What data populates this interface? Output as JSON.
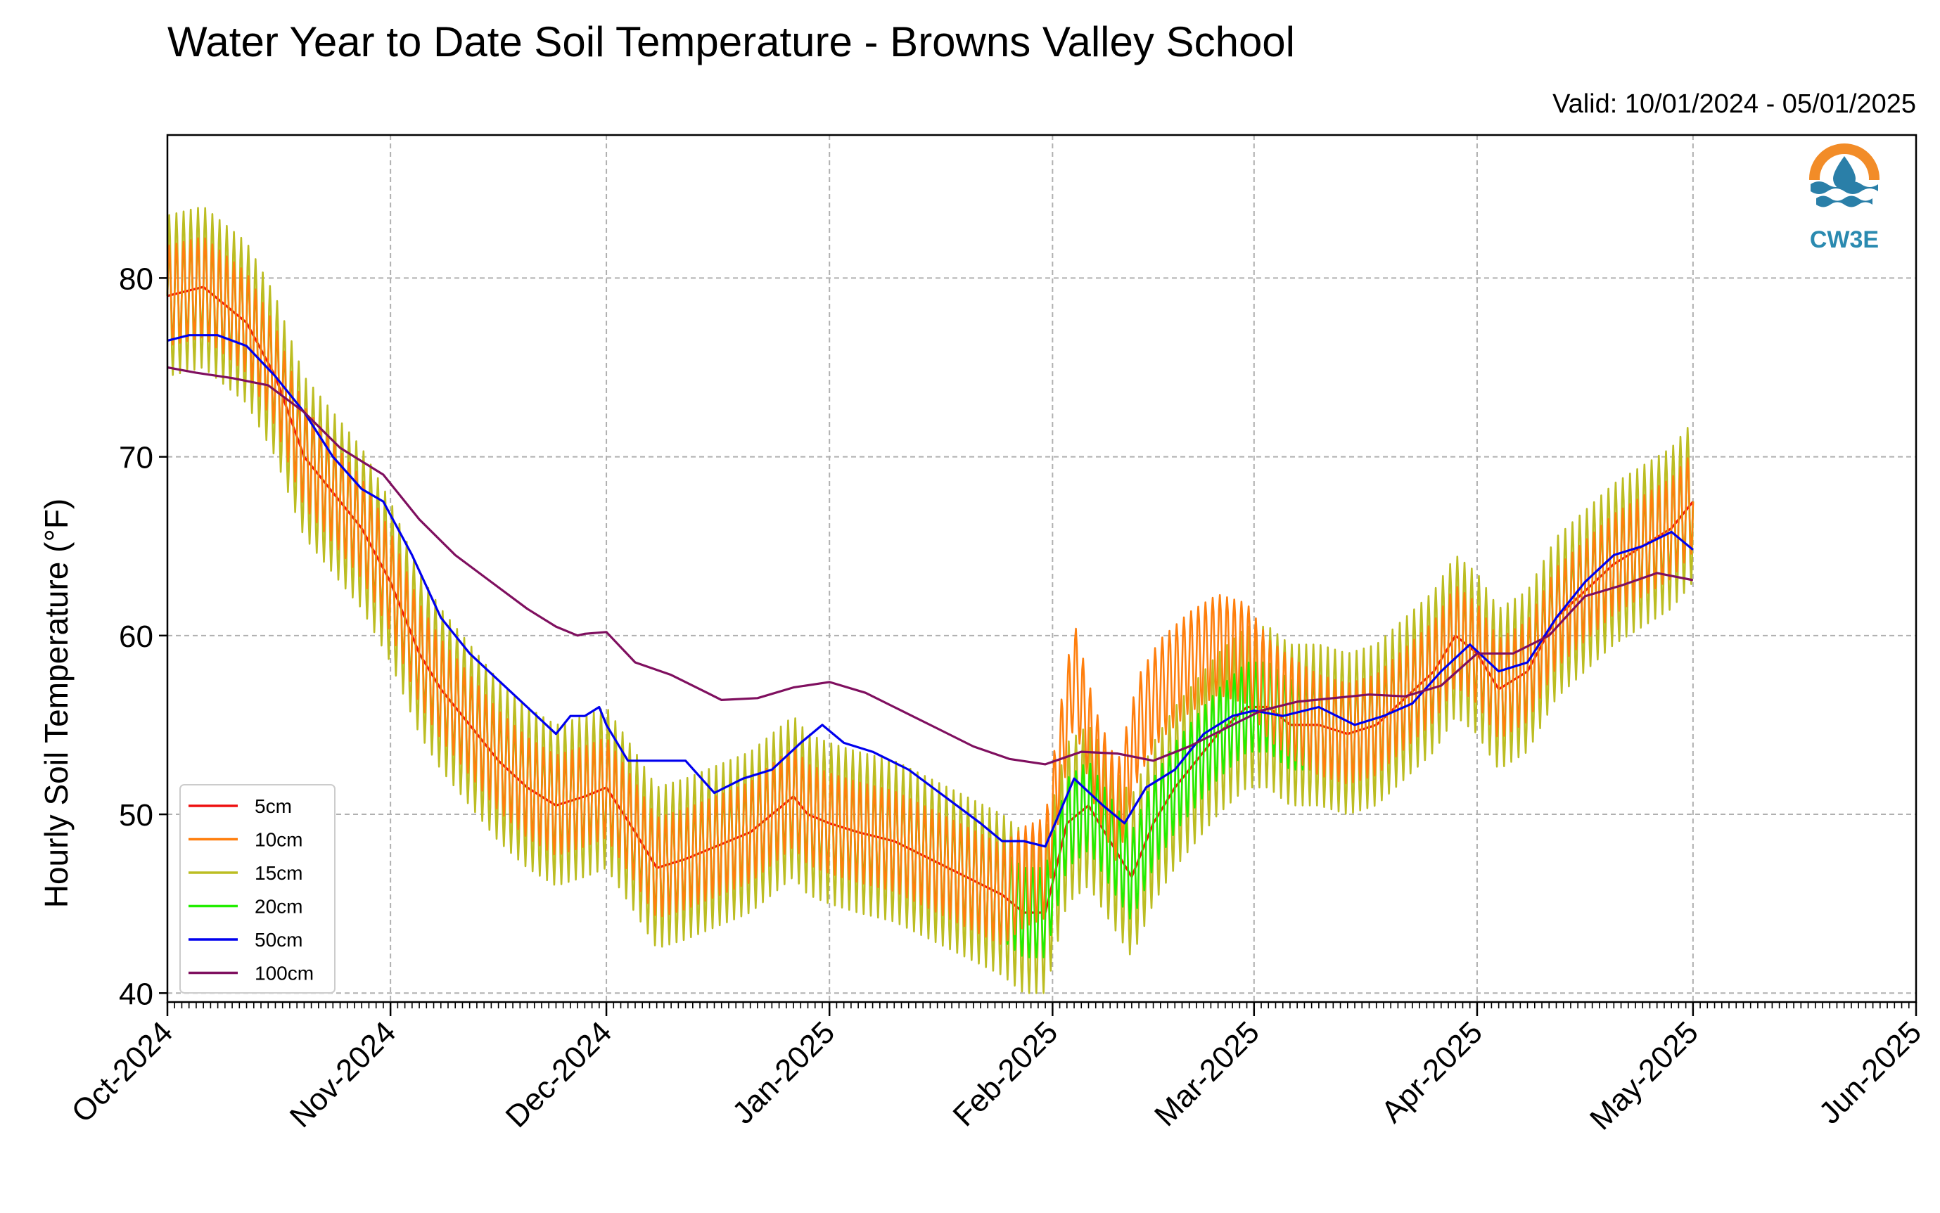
{
  "chart_data": {
    "type": "line",
    "title": "Water Year to Date Soil Temperature - Browns Valley School",
    "subtitle": "Valid: 10/01/2024 - 05/01/2025",
    "ylabel": "Hourly Soil Temperature (°F)",
    "xlabel": "",
    "ylim": [
      39.5,
      88
    ],
    "xlim": [
      "2024-10-01",
      "2025-06-01"
    ],
    "yticks": [
      40,
      50,
      60,
      70,
      80
    ],
    "x_ticks": [
      "2024-10-01",
      "2024-11-01",
      "2024-12-01",
      "2025-01-01",
      "2025-02-01",
      "2025-03-01",
      "2025-04-01",
      "2025-05-01",
      "2025-06-01"
    ],
    "xtick_labels": [
      "Oct-2024",
      "Nov-2024",
      "Dec-2024",
      "Jan-2025",
      "Feb-2025",
      "Mar-2025",
      "Apr-2025",
      "May-2025",
      "Jun-2025"
    ],
    "grid": true,
    "legend_position": "lower-left",
    "logo_text": "CW3E",
    "series": [
      {
        "name": "5cm",
        "color": "#ee1111",
        "daily_amplitude": 0,
        "x": [
          "2024-10-01",
          "2024-10-06",
          "2024-10-12",
          "2024-10-16",
          "2024-10-20",
          "2024-10-24",
          "2024-10-28",
          "2024-11-01",
          "2024-11-05",
          "2024-11-08",
          "2024-11-12",
          "2024-11-16",
          "2024-11-20",
          "2024-11-24",
          "2024-11-28",
          "2024-12-01",
          "2024-12-05",
          "2024-12-08",
          "2024-12-12",
          "2024-12-15",
          "2024-12-18",
          "2024-12-21",
          "2024-12-24",
          "2024-12-27",
          "2024-12-29",
          "2025-01-01",
          "2025-01-05",
          "2025-01-10",
          "2025-01-15",
          "2025-01-20",
          "2025-01-25",
          "2025-01-28",
          "2025-01-31",
          "2025-02-03",
          "2025-02-06",
          "2025-02-09",
          "2025-02-12",
          "2025-02-15",
          "2025-02-18",
          "2025-02-21",
          "2025-02-24",
          "2025-02-28",
          "2025-03-03",
          "2025-03-06",
          "2025-03-10",
          "2025-03-14",
          "2025-03-18",
          "2025-03-22",
          "2025-03-26",
          "2025-03-29",
          "2025-04-01",
          "2025-04-04",
          "2025-04-08",
          "2025-04-12",
          "2025-04-16",
          "2025-04-20",
          "2025-04-24",
          "2025-04-28",
          "2025-05-01"
        ],
        "y": [
          79,
          79.5,
          77.5,
          74.5,
          70,
          68,
          66,
          63,
          59,
          57,
          55,
          53,
          51.5,
          50.5,
          51,
          51.5,
          49,
          47,
          47.5,
          48,
          48.5,
          49,
          50,
          51,
          50,
          49.5,
          49,
          48.5,
          47.5,
          46.5,
          45.5,
          44.5,
          44.5,
          49.5,
          50.5,
          48.5,
          46.5,
          49.5,
          51.5,
          53,
          54.5,
          56,
          56,
          55,
          55,
          54.5,
          55,
          56.5,
          58,
          60,
          59,
          57,
          58,
          61,
          62.5,
          64,
          65,
          66,
          67.5
        ]
      },
      {
        "name": "10cm",
        "color": "#ff7f0e",
        "daily_amplitude": 2.8,
        "x": [
          "2024-10-01",
          "2024-10-06",
          "2024-10-12",
          "2024-10-16",
          "2024-10-20",
          "2024-10-24",
          "2024-10-28",
          "2024-11-01",
          "2024-11-05",
          "2024-11-08",
          "2024-11-12",
          "2024-11-16",
          "2024-11-20",
          "2024-11-24",
          "2024-11-28",
          "2024-12-01",
          "2024-12-05",
          "2024-12-08",
          "2024-12-12",
          "2024-12-15",
          "2024-12-18",
          "2024-12-21",
          "2024-12-24",
          "2024-12-27",
          "2024-12-29",
          "2025-01-01",
          "2025-01-05",
          "2025-01-10",
          "2025-01-15",
          "2025-01-20",
          "2025-01-25",
          "2025-01-28",
          "2025-01-31",
          "2025-02-02",
          "2025-02-04",
          "2025-02-07",
          "2025-02-10",
          "2025-02-13",
          "2025-02-16",
          "2025-02-20",
          "2025-02-24",
          "2025-02-28",
          "2025-03-03",
          "2025-03-06",
          "2025-03-10",
          "2025-03-14",
          "2025-03-18",
          "2025-03-22",
          "2025-03-26",
          "2025-03-29",
          "2025-04-01",
          "2025-04-04",
          "2025-04-08",
          "2025-04-12",
          "2025-04-16",
          "2025-04-20",
          "2025-04-24",
          "2025-04-28",
          "2025-05-01"
        ],
        "y": [
          79,
          79.5,
          77.5,
          74.5,
          70,
          68,
          66,
          63,
          59,
          57,
          55,
          53,
          51.5,
          50.5,
          51,
          51.5,
          49,
          47,
          47.5,
          48,
          48.5,
          49,
          50,
          51,
          50,
          49.5,
          49,
          48.5,
          47.5,
          46.5,
          45.5,
          46.5,
          47,
          53,
          58,
          53,
          50,
          55,
          57,
          58.5,
          59.5,
          59,
          57,
          56,
          55,
          54.5,
          55,
          56.5,
          58,
          60,
          59,
          57,
          58,
          61,
          62.5,
          64,
          65,
          66,
          67.5
        ]
      },
      {
        "name": "15cm",
        "color": "#bcbd22",
        "daily_amplitude": 4.5,
        "x": [
          "2024-10-01",
          "2024-10-06",
          "2024-10-12",
          "2024-10-16",
          "2024-10-20",
          "2024-10-24",
          "2024-10-28",
          "2024-11-01",
          "2024-11-05",
          "2024-11-08",
          "2024-11-12",
          "2024-11-16",
          "2024-11-20",
          "2024-11-24",
          "2024-11-28",
          "2024-12-01",
          "2024-12-05",
          "2024-12-08",
          "2024-12-12",
          "2024-12-15",
          "2024-12-18",
          "2024-12-21",
          "2024-12-24",
          "2024-12-27",
          "2024-12-29",
          "2025-01-01",
          "2025-01-05",
          "2025-01-10",
          "2025-01-15",
          "2025-01-20",
          "2025-01-25",
          "2025-01-28",
          "2025-01-31",
          "2025-02-03",
          "2025-02-06",
          "2025-02-09",
          "2025-02-12",
          "2025-02-15",
          "2025-02-18",
          "2025-02-21",
          "2025-02-24",
          "2025-02-28",
          "2025-03-03",
          "2025-03-06",
          "2025-03-10",
          "2025-03-14",
          "2025-03-18",
          "2025-03-22",
          "2025-03-26",
          "2025-03-29",
          "2025-04-01",
          "2025-04-04",
          "2025-04-08",
          "2025-04-12",
          "2025-04-16",
          "2025-04-20",
          "2025-04-24",
          "2025-04-28",
          "2025-05-01"
        ],
        "y": [
          79,
          79.5,
          77.5,
          74.5,
          70,
          68,
          66,
          63,
          59,
          57,
          55,
          53,
          51.5,
          50.5,
          51,
          51.5,
          49,
          47,
          47.5,
          48,
          48.5,
          49,
          50,
          51,
          50,
          49.5,
          49,
          48.5,
          47.5,
          46.5,
          45.5,
          44.5,
          44.5,
          49.5,
          50.5,
          48.5,
          46.5,
          49.5,
          51.5,
          53,
          54.5,
          56,
          56,
          55,
          55,
          54.5,
          55,
          56.5,
          58,
          60,
          59,
          57,
          58,
          61,
          62.5,
          64,
          65,
          66,
          67.5
        ]
      },
      {
        "name": "20cm",
        "color": "#22ee00",
        "daily_amplitude": 2.5,
        "x": [
          "2024-10-01",
          "2024-10-06",
          "2024-10-12",
          "2024-10-16",
          "2024-10-20",
          "2024-10-24",
          "2024-10-28",
          "2024-11-01",
          "2024-11-05",
          "2024-11-08",
          "2024-11-12",
          "2024-11-16",
          "2024-11-20",
          "2024-11-24",
          "2024-11-28",
          "2024-12-01",
          "2024-12-05",
          "2024-12-08",
          "2024-12-12",
          "2024-12-15",
          "2024-12-18",
          "2024-12-21",
          "2024-12-24",
          "2024-12-27",
          "2024-12-29",
          "2025-01-01",
          "2025-01-05",
          "2025-01-10",
          "2025-01-15",
          "2025-01-20",
          "2025-01-25",
          "2025-01-28",
          "2025-01-31",
          "2025-02-03",
          "2025-02-06",
          "2025-02-09",
          "2025-02-12",
          "2025-02-15",
          "2025-02-18",
          "2025-02-21",
          "2025-02-24",
          "2025-02-28",
          "2025-03-03",
          "2025-03-06",
          "2025-03-10",
          "2025-03-14",
          "2025-03-18",
          "2025-03-22",
          "2025-03-26",
          "2025-03-29",
          "2025-04-01",
          "2025-04-04",
          "2025-04-08",
          "2025-04-12",
          "2025-04-16",
          "2025-04-20",
          "2025-04-24",
          "2025-04-28",
          "2025-05-01"
        ],
        "y": [
          79,
          79.5,
          77.5,
          74.5,
          70,
          68,
          66,
          63,
          59,
          57,
          55,
          53,
          51.5,
          50.5,
          51,
          51.5,
          49,
          47,
          47.5,
          48,
          48.5,
          49,
          50,
          51,
          50,
          49.5,
          49,
          48.5,
          47.5,
          46.5,
          45.5,
          44.5,
          44.5,
          49.5,
          50.5,
          48.5,
          46.5,
          49.5,
          51.5,
          53,
          54.5,
          56,
          56,
          55,
          55,
          54.5,
          55,
          56.5,
          58,
          60,
          59,
          57,
          58,
          61,
          62.5,
          64,
          65,
          66,
          67.5
        ]
      },
      {
        "name": "50cm",
        "color": "#0000ee",
        "daily_amplitude": 0,
        "x": [
          "2024-10-01",
          "2024-10-04",
          "2024-10-08",
          "2024-10-12",
          "2024-10-16",
          "2024-10-20",
          "2024-10-24",
          "2024-10-28",
          "2024-10-31",
          "2024-11-04",
          "2024-11-08",
          "2024-11-12",
          "2024-11-16",
          "2024-11-20",
          "2024-11-24",
          "2024-11-26",
          "2024-11-28",
          "2024-11-30",
          "2024-12-01",
          "2024-12-04",
          "2024-12-08",
          "2024-12-12",
          "2024-12-16",
          "2024-12-20",
          "2024-12-24",
          "2024-12-28",
          "2024-12-31",
          "2025-01-03",
          "2025-01-07",
          "2025-01-12",
          "2025-01-17",
          "2025-01-22",
          "2025-01-25",
          "2025-01-28",
          "2025-01-31",
          "2025-02-04",
          "2025-02-08",
          "2025-02-11",
          "2025-02-14",
          "2025-02-18",
          "2025-02-22",
          "2025-02-26",
          "2025-03-01",
          "2025-03-05",
          "2025-03-10",
          "2025-03-15",
          "2025-03-19",
          "2025-03-23",
          "2025-03-27",
          "2025-03-31",
          "2025-04-04",
          "2025-04-08",
          "2025-04-12",
          "2025-04-16",
          "2025-04-20",
          "2025-04-24",
          "2025-04-28",
          "2025-05-01"
        ],
        "y": [
          76.5,
          76.8,
          76.8,
          76.2,
          74.5,
          72.5,
          70,
          68.2,
          67.5,
          64.5,
          61,
          59,
          57.5,
          56,
          54.5,
          55.5,
          55.5,
          56,
          55,
          53,
          53,
          53,
          51.2,
          52,
          52.5,
          54,
          55,
          54,
          53.5,
          52.5,
          51,
          49.5,
          48.5,
          48.5,
          48.2,
          52,
          50.5,
          49.5,
          51.5,
          52.5,
          54.5,
          55.5,
          55.8,
          55.5,
          56,
          55,
          55.5,
          56.2,
          58,
          59.5,
          58,
          58.5,
          61,
          63,
          64.5,
          65,
          65.8,
          64.8
        ]
      },
      {
        "name": "100cm",
        "color": "#7f0f5f",
        "daily_amplitude": 0,
        "x": [
          "2024-10-01",
          "2024-10-05",
          "2024-10-10",
          "2024-10-15",
          "2024-10-20",
          "2024-10-25",
          "2024-10-31",
          "2024-11-05",
          "2024-11-10",
          "2024-11-15",
          "2024-11-20",
          "2024-11-24",
          "2024-11-27",
          "2024-11-28",
          "2024-12-01",
          "2024-12-05",
          "2024-12-10",
          "2024-12-15",
          "2024-12-17",
          "2024-12-22",
          "2024-12-27",
          "2025-01-01",
          "2025-01-06",
          "2025-01-11",
          "2025-01-16",
          "2025-01-21",
          "2025-01-26",
          "2025-01-31",
          "2025-02-05",
          "2025-02-10",
          "2025-02-15",
          "2025-02-20",
          "2025-02-25",
          "2025-03-02",
          "2025-03-07",
          "2025-03-12",
          "2025-03-17",
          "2025-03-22",
          "2025-03-27",
          "2025-04-01",
          "2025-04-06",
          "2025-04-11",
          "2025-04-16",
          "2025-04-21",
          "2025-04-26",
          "2025-05-01"
        ],
        "y": [
          75,
          74.7,
          74.4,
          74,
          72.5,
          70.5,
          69,
          66.5,
          64.5,
          63,
          61.5,
          60.5,
          60,
          60.1,
          60.2,
          58.5,
          57.8,
          56.8,
          56.4,
          56.5,
          57.1,
          57.4,
          56.8,
          55.8,
          54.8,
          53.8,
          53.1,
          52.8,
          53.5,
          53.4,
          53,
          53.8,
          54.8,
          55.8,
          56.3,
          56.5,
          56.7,
          56.6,
          57.2,
          59,
          59,
          60,
          62.2,
          62.8,
          63.5,
          63.1
        ]
      }
    ]
  }
}
